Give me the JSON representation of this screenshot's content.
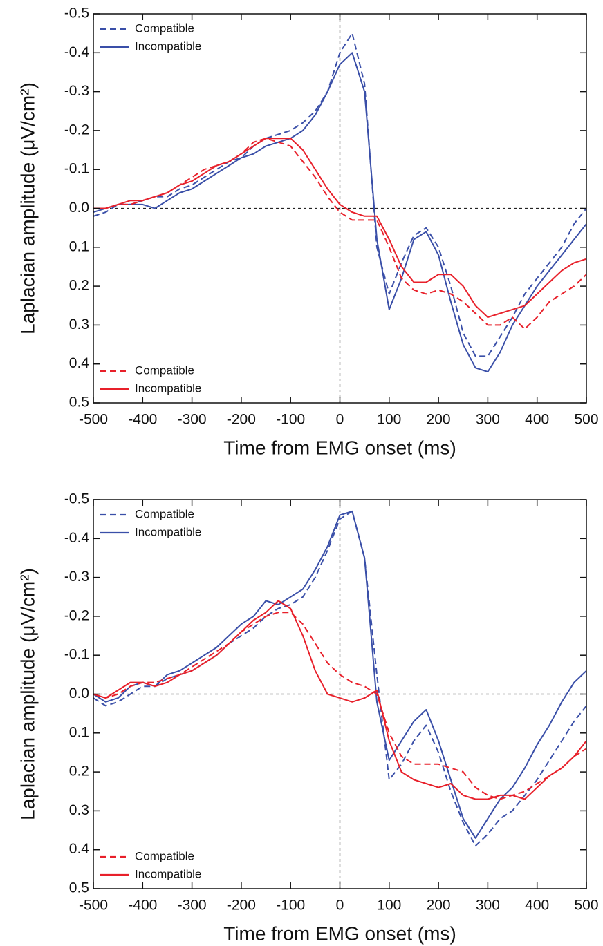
{
  "chart_data": [
    {
      "type": "line",
      "x_label": "Time from EMG onset (ms)",
      "y_label": "Laplacian amplitude (μV/cm²)",
      "xlim": [
        -500,
        500
      ],
      "ylim": [
        -0.5,
        0.5
      ],
      "y_inverted": true,
      "xticks": [
        -500,
        -400,
        -300,
        -200,
        -100,
        0,
        100,
        200,
        300,
        400,
        500
      ],
      "yticks": [
        -0.5,
        -0.4,
        -0.3,
        -0.2,
        -0.1,
        {
          "value": 0,
          "label": "0.0"
        },
        0.1,
        0.2,
        0.3,
        0.4,
        0.5
      ],
      "hlines": [
        0
      ],
      "vlines": [
        0
      ],
      "x": [
        -500,
        -475,
        -450,
        -425,
        -400,
        -375,
        -350,
        -325,
        -300,
        -275,
        -250,
        -225,
        -200,
        -175,
        -150,
        -125,
        -100,
        -75,
        -50,
        -25,
        0,
        25,
        50,
        75,
        100,
        125,
        150,
        175,
        200,
        225,
        250,
        275,
        300,
        325,
        350,
        375,
        400,
        425,
        450,
        475,
        500
      ],
      "series": [
        {
          "name": "Compatible",
          "color": "#3a4fa8",
          "dash": true,
          "legend_corner": "upper left",
          "values": [
            0.02,
            0.01,
            -0.01,
            -0.01,
            -0.02,
            -0.03,
            -0.03,
            -0.05,
            -0.06,
            -0.08,
            -0.1,
            -0.12,
            -0.13,
            -0.16,
            -0.18,
            -0.19,
            -0.2,
            -0.22,
            -0.25,
            -0.3,
            -0.4,
            -0.45,
            -0.32,
            0.1,
            0.22,
            0.14,
            0.07,
            0.05,
            0.1,
            0.2,
            0.32,
            0.38,
            0.38,
            0.33,
            0.28,
            0.22,
            0.18,
            0.14,
            0.1,
            0.04,
            0.0
          ]
        },
        {
          "name": "Incompatible",
          "color": "#3a4fa8",
          "dash": false,
          "legend_corner": "upper left",
          "values": [
            0.01,
            0.0,
            -0.01,
            -0.01,
            -0.01,
            0.0,
            -0.02,
            -0.04,
            -0.05,
            -0.07,
            -0.09,
            -0.11,
            -0.13,
            -0.14,
            -0.16,
            -0.17,
            -0.18,
            -0.2,
            -0.24,
            -0.3,
            -0.37,
            -0.4,
            -0.3,
            0.08,
            0.26,
            0.18,
            0.08,
            0.06,
            0.12,
            0.24,
            0.35,
            0.41,
            0.42,
            0.37,
            0.3,
            0.25,
            0.2,
            0.16,
            0.12,
            0.08,
            0.04
          ]
        },
        {
          "name": "Compatible",
          "color": "#e8202a",
          "dash": true,
          "legend_corner": "lower left",
          "values": [
            0.0,
            0.0,
            -0.01,
            -0.01,
            -0.02,
            -0.03,
            -0.04,
            -0.06,
            -0.08,
            -0.1,
            -0.11,
            -0.12,
            -0.14,
            -0.17,
            -0.18,
            -0.17,
            -0.16,
            -0.12,
            -0.08,
            -0.03,
            0.01,
            0.03,
            0.03,
            0.03,
            0.1,
            0.18,
            0.21,
            0.22,
            0.21,
            0.22,
            0.24,
            0.27,
            0.3,
            0.3,
            0.28,
            0.31,
            0.28,
            0.24,
            0.22,
            0.2,
            0.17
          ]
        },
        {
          "name": "Incompatible",
          "color": "#e8202a",
          "dash": false,
          "legend_corner": "lower left",
          "values": [
            0.0,
            0.0,
            -0.01,
            -0.02,
            -0.02,
            -0.03,
            -0.04,
            -0.06,
            -0.07,
            -0.09,
            -0.11,
            -0.12,
            -0.14,
            -0.16,
            -0.18,
            -0.18,
            -0.18,
            -0.15,
            -0.1,
            -0.05,
            -0.01,
            0.01,
            0.02,
            0.02,
            0.08,
            0.15,
            0.19,
            0.19,
            0.17,
            0.17,
            0.2,
            0.25,
            0.28,
            0.27,
            0.26,
            0.25,
            0.22,
            0.19,
            0.16,
            0.14,
            0.13
          ]
        }
      ]
    },
    {
      "type": "line",
      "x_label": "Time from EMG onset (ms)",
      "y_label": "Laplacian amplitude (μV/cm²)",
      "xlim": [
        -500,
        500
      ],
      "ylim": [
        -0.5,
        0.5
      ],
      "y_inverted": true,
      "xticks": [
        -500,
        -400,
        -300,
        -200,
        -100,
        0,
        100,
        200,
        300,
        400,
        500
      ],
      "yticks": [
        -0.5,
        -0.4,
        -0.3,
        -0.2,
        -0.1,
        {
          "value": 0,
          "label": "0.0"
        },
        0.1,
        0.2,
        0.3,
        0.4,
        0.5
      ],
      "hlines": [
        0
      ],
      "vlines": [
        0
      ],
      "x": [
        -500,
        -475,
        -450,
        -425,
        -400,
        -375,
        -350,
        -325,
        -300,
        -275,
        -250,
        -225,
        -200,
        -175,
        -150,
        -125,
        -100,
        -75,
        -50,
        -25,
        0,
        25,
        50,
        75,
        100,
        125,
        150,
        175,
        200,
        225,
        250,
        275,
        300,
        325,
        350,
        375,
        400,
        425,
        450,
        475,
        500
      ],
      "series": [
        {
          "name": "Compatible",
          "color": "#3a4fa8",
          "dash": true,
          "legend_corner": "upper left",
          "values": [
            0.01,
            0.03,
            0.02,
            0.0,
            -0.02,
            -0.02,
            -0.04,
            -0.05,
            -0.06,
            -0.08,
            -0.1,
            -0.13,
            -0.15,
            -0.17,
            -0.2,
            -0.22,
            -0.23,
            -0.25,
            -0.3,
            -0.37,
            -0.45,
            -0.47,
            -0.35,
            -0.05,
            0.22,
            0.18,
            0.12,
            0.08,
            0.15,
            0.25,
            0.33,
            0.39,
            0.36,
            0.32,
            0.3,
            0.26,
            0.22,
            0.17,
            0.12,
            0.07,
            0.03
          ]
        },
        {
          "name": "Incompatible",
          "color": "#3a4fa8",
          "dash": false,
          "legend_corner": "upper left",
          "values": [
            0.0,
            0.02,
            0.01,
            -0.02,
            -0.03,
            -0.02,
            -0.05,
            -0.06,
            -0.08,
            -0.1,
            -0.12,
            -0.15,
            -0.18,
            -0.2,
            -0.24,
            -0.23,
            -0.25,
            -0.27,
            -0.32,
            -0.38,
            -0.46,
            -0.47,
            -0.35,
            0.02,
            0.17,
            0.12,
            0.07,
            0.04,
            0.12,
            0.22,
            0.32,
            0.37,
            0.32,
            0.27,
            0.24,
            0.19,
            0.13,
            0.08,
            0.02,
            -0.03,
            -0.06
          ]
        },
        {
          "name": "Compatible",
          "color": "#e8202a",
          "dash": true,
          "legend_corner": "lower left",
          "values": [
            0.0,
            0.01,
            0.0,
            -0.02,
            -0.03,
            -0.03,
            -0.04,
            -0.05,
            -0.07,
            -0.09,
            -0.11,
            -0.13,
            -0.16,
            -0.18,
            -0.2,
            -0.21,
            -0.21,
            -0.18,
            -0.13,
            -0.08,
            -0.05,
            -0.03,
            -0.02,
            0.0,
            0.1,
            0.16,
            0.18,
            0.18,
            0.18,
            0.19,
            0.2,
            0.24,
            0.26,
            0.27,
            0.26,
            0.25,
            0.23,
            0.21,
            0.19,
            0.16,
            0.14
          ]
        },
        {
          "name": "Incompatible",
          "color": "#e8202a",
          "dash": false,
          "legend_corner": "lower left",
          "values": [
            0.0,
            0.01,
            -0.01,
            -0.03,
            -0.03,
            -0.02,
            -0.03,
            -0.05,
            -0.06,
            -0.08,
            -0.1,
            -0.13,
            -0.16,
            -0.19,
            -0.21,
            -0.24,
            -0.22,
            -0.15,
            -0.06,
            0.0,
            0.01,
            0.02,
            0.01,
            -0.01,
            0.12,
            0.2,
            0.22,
            0.23,
            0.24,
            0.23,
            0.26,
            0.27,
            0.27,
            0.26,
            0.26,
            0.27,
            0.24,
            0.21,
            0.19,
            0.16,
            0.12
          ]
        }
      ]
    }
  ]
}
